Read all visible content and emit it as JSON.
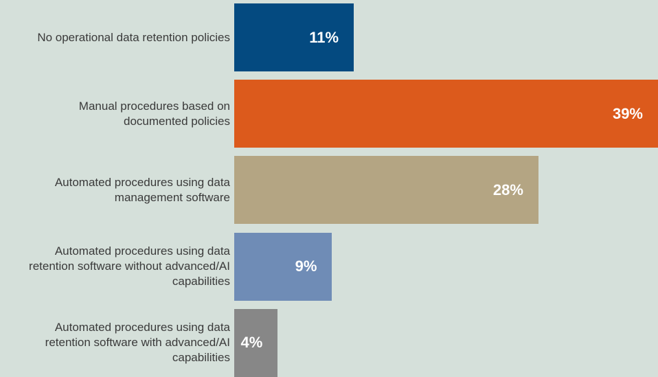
{
  "chart_data": {
    "type": "bar",
    "orientation": "horizontal",
    "categories": [
      "No operational data retention policies",
      "Manual procedures based on documented policies",
      "Automated procedures using data management software",
      "Automated procedures using data retention software without advanced/AI capabilities",
      "Automated procedures using data retention software with advanced/AI capabilities"
    ],
    "values": [
      11,
      39,
      28,
      9,
      4
    ],
    "value_labels": [
      "11%",
      "39%",
      "28%",
      "9%",
      "4%"
    ],
    "colors": [
      "#044a80",
      "#dc5a1c",
      "#b4a583",
      "#6f8cb6",
      "#878787"
    ]
  }
}
